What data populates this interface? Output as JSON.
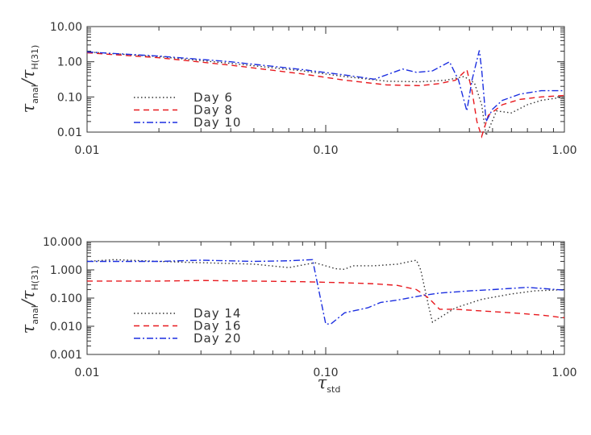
{
  "chart_data": [
    {
      "type": "line",
      "xscale": "log",
      "yscale": "log",
      "xlim": [
        0.01,
        1.0
      ],
      "ylim": [
        0.01,
        10.0
      ],
      "xticks": [
        "0.01",
        "0.10",
        "1.00"
      ],
      "yticks": [
        {
          "value": 10.0,
          "label": "10.00"
        },
        {
          "value": 1.0,
          "label": "1.00"
        },
        {
          "value": 0.1,
          "label": "0.10"
        },
        {
          "value": 0.01,
          "label": "0.01"
        }
      ],
      "ylabel": {
        "main1": "τ",
        "sub1": "anal",
        "main2": "/τ",
        "sub2": "H(31)"
      },
      "xlabel": "",
      "legend_position": "lower-left",
      "series": [
        {
          "name": "Day 6",
          "color": "#333333",
          "dash": "1.5 3",
          "x": [
            0.01,
            0.02,
            0.04,
            0.08,
            0.12,
            0.18,
            0.25,
            0.32,
            0.38,
            0.42,
            0.45,
            0.47,
            0.52,
            0.6,
            0.7,
            0.8,
            1.0
          ],
          "y": [
            1.9,
            1.4,
            0.9,
            0.55,
            0.38,
            0.28,
            0.27,
            0.3,
            0.38,
            0.25,
            0.06,
            0.008,
            0.04,
            0.035,
            0.06,
            0.08,
            0.1
          ]
        },
        {
          "name": "Day 8",
          "color": "#e8191e",
          "dash": "7 5",
          "x": [
            0.01,
            0.02,
            0.04,
            0.08,
            0.12,
            0.18,
            0.25,
            0.3,
            0.35,
            0.39,
            0.41,
            0.43,
            0.45,
            0.48,
            0.55,
            0.65,
            0.8,
            1.0
          ],
          "y": [
            1.8,
            1.3,
            0.8,
            0.45,
            0.3,
            0.22,
            0.21,
            0.24,
            0.3,
            0.6,
            0.15,
            0.02,
            0.006,
            0.03,
            0.06,
            0.085,
            0.1,
            0.11
          ]
        },
        {
          "name": "Day 10",
          "color": "#1c2fe0",
          "dash": "8 3 2 3",
          "x": [
            0.01,
            0.02,
            0.04,
            0.08,
            0.12,
            0.16,
            0.21,
            0.24,
            0.28,
            0.33,
            0.36,
            0.39,
            0.41,
            0.44,
            0.45,
            0.47,
            0.5,
            0.55,
            0.65,
            0.8,
            1.0
          ],
          "y": [
            1.9,
            1.45,
            1.0,
            0.6,
            0.42,
            0.32,
            0.62,
            0.5,
            0.55,
            1.0,
            0.3,
            0.04,
            0.3,
            2.1,
            0.6,
            0.02,
            0.045,
            0.08,
            0.12,
            0.15,
            0.15
          ]
        }
      ]
    },
    {
      "type": "line",
      "xscale": "log",
      "yscale": "log",
      "xlim": [
        0.01,
        1.0
      ],
      "ylim": [
        0.001,
        10.0
      ],
      "xticks": [
        "0.01",
        "0.10",
        "1.00"
      ],
      "yticks": [
        {
          "value": 10.0,
          "label": "10.000"
        },
        {
          "value": 1.0,
          "label": "1.000"
        },
        {
          "value": 0.1,
          "label": "0.100"
        },
        {
          "value": 0.01,
          "label": "0.010"
        },
        {
          "value": 0.001,
          "label": "0.001"
        }
      ],
      "ylabel": {
        "main1": "τ",
        "sub1": "anal",
        "main2": "/τ",
        "sub2": "H(31)"
      },
      "xlabel": {
        "main": "τ",
        "sub": "std"
      },
      "legend_position": "lower-left",
      "series": [
        {
          "name": "Day 14",
          "color": "#333333",
          "dash": "1.5 3",
          "x": [
            0.01,
            0.013,
            0.02,
            0.03,
            0.05,
            0.07,
            0.09,
            0.11,
            0.12,
            0.13,
            0.16,
            0.2,
            0.24,
            0.25,
            0.27,
            0.28,
            0.3,
            0.35,
            0.45,
            0.6,
            0.75,
            1.0
          ],
          "y": [
            2.0,
            2.3,
            2.0,
            1.8,
            1.6,
            1.2,
            1.8,
            1.1,
            1.05,
            1.4,
            1.4,
            1.6,
            2.2,
            1.0,
            0.05,
            0.014,
            0.02,
            0.045,
            0.09,
            0.14,
            0.18,
            0.2
          ]
        },
        {
          "name": "Day 16",
          "color": "#e8191e",
          "dash": "7 5",
          "x": [
            0.01,
            0.02,
            0.03,
            0.05,
            0.08,
            0.12,
            0.16,
            0.2,
            0.24,
            0.27,
            0.3,
            0.35,
            0.45,
            0.6,
            0.8,
            1.0
          ],
          "y": [
            0.4,
            0.4,
            0.42,
            0.4,
            0.38,
            0.35,
            0.32,
            0.28,
            0.2,
            0.1,
            0.04,
            0.04,
            0.035,
            0.03,
            0.025,
            0.02
          ]
        },
        {
          "name": "Day 20",
          "color": "#1c2fe0",
          "dash": "8 3 2 3",
          "x": [
            0.01,
            0.02,
            0.03,
            0.05,
            0.07,
            0.088,
            0.1,
            0.105,
            0.12,
            0.15,
            0.17,
            0.2,
            0.25,
            0.3,
            0.4,
            0.5,
            0.6,
            0.7,
            0.8,
            1.0
          ],
          "y": [
            2.0,
            2.0,
            2.2,
            2.0,
            2.1,
            2.3,
            0.012,
            0.012,
            0.03,
            0.045,
            0.07,
            0.085,
            0.12,
            0.15,
            0.18,
            0.2,
            0.22,
            0.24,
            0.22,
            0.19
          ]
        }
      ]
    }
  ]
}
